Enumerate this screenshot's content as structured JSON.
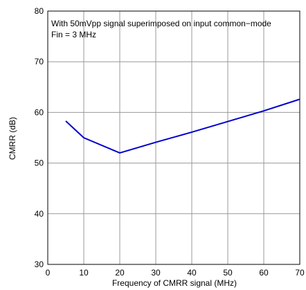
{
  "chart_data": {
    "type": "line",
    "xlabel": "Frequency of CMRR signal (MHz)",
    "ylabel": "CMRR (dB)",
    "xlim": [
      0,
      70
    ],
    "ylim": [
      30,
      80
    ],
    "xticks": [
      0,
      10,
      20,
      30,
      40,
      50,
      60,
      70
    ],
    "yticks": [
      30,
      40,
      50,
      60,
      70,
      80
    ],
    "grid": true,
    "annotations": [
      "With 50mVpp signal superimposed on input common−mode",
      "Fin = 3 MHz"
    ],
    "series": [
      {
        "color": "#0000cc",
        "x": [
          5,
          10,
          20,
          30,
          40,
          50,
          60,
          70
        ],
        "y": [
          58.3,
          55.0,
          52.0,
          54.1,
          56.1,
          58.2,
          60.3,
          62.6
        ]
      }
    ]
  }
}
